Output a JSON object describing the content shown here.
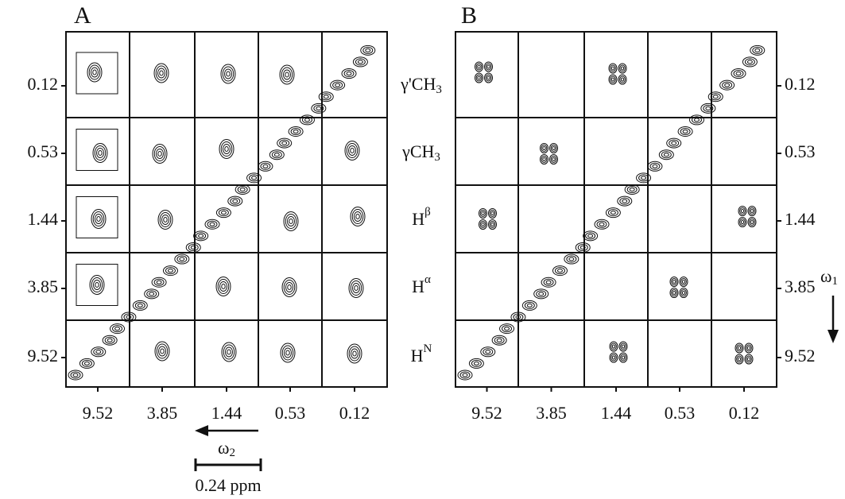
{
  "panels": [
    {
      "letter": "A",
      "row_ticks": [
        "0.12",
        "0.53",
        "1.44",
        "3.85",
        "9.52"
      ],
      "column_ticks": [
        "9.52",
        "3.85",
        "1.44",
        "0.53",
        "0.12"
      ]
    },
    {
      "letter": "B",
      "row_ticks": [
        "0.12",
        "0.53",
        "1.44",
        "3.85",
        "9.52"
      ],
      "column_ticks": [
        "9.52",
        "3.85",
        "1.44",
        "0.53",
        "0.12"
      ]
    }
  ],
  "row_labels": [
    {
      "base": "γ'CH",
      "sub": "3"
    },
    {
      "base": "γCH",
      "sub": "3"
    },
    {
      "base": "H",
      "sup": "β"
    },
    {
      "base": "H",
      "sup": "α"
    },
    {
      "base": "H",
      "sup": "N"
    }
  ],
  "axes": {
    "horizontal": {
      "base": "ω",
      "sub": "2"
    },
    "vertical": {
      "base": "ω",
      "sub": "1"
    },
    "scale_bar": "0.24 ppm"
  }
}
